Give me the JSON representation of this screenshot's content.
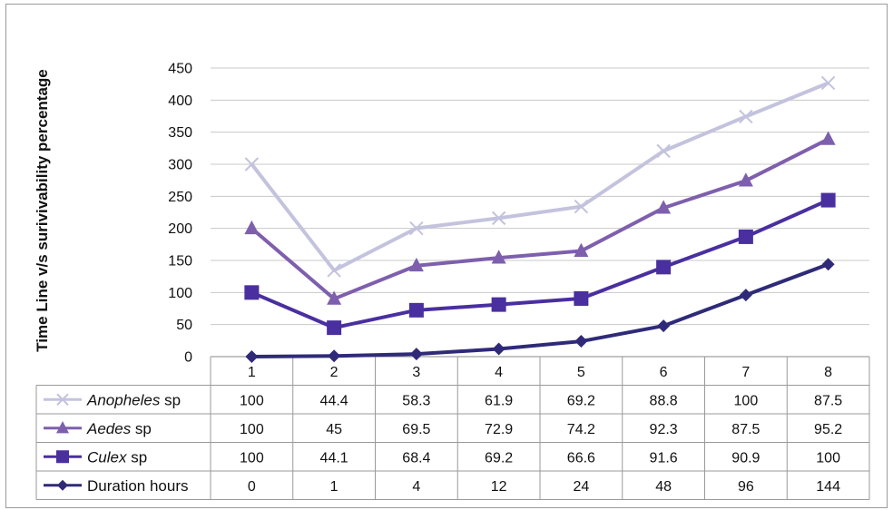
{
  "chart_data": {
    "type": "line",
    "stacked": true,
    "ylabel": "Time Line v/s surivivability percentage",
    "ylim": [
      0,
      450
    ],
    "yticks": [
      0,
      50,
      100,
      150,
      200,
      250,
      300,
      350,
      400,
      450
    ],
    "categories": [
      "1",
      "2",
      "3",
      "4",
      "5",
      "6",
      "7",
      "8"
    ],
    "grid": "horizontal",
    "legend": "data-table-below",
    "series": [
      {
        "name_italic": "Anopheles",
        "name_suffix": " sp",
        "values": [
          100,
          44.4,
          58.3,
          61.9,
          69.2,
          88.8,
          100,
          87.5
        ],
        "value_labels": [
          "100",
          "44.4",
          "58.3",
          "61.9",
          "69.2",
          "88.8",
          "100",
          "87.5"
        ],
        "color": "#c3c3de",
        "marker": "x"
      },
      {
        "name_italic": "Aedes",
        "name_suffix": " sp",
        "values": [
          100,
          45,
          69.5,
          72.9,
          74.2,
          92.3,
          87.5,
          95.2
        ],
        "value_labels": [
          "100",
          "45",
          "69.5",
          "72.9",
          "74.2",
          "92.3",
          "87.5",
          "95.2"
        ],
        "color": "#7e5fad",
        "marker": "triangle"
      },
      {
        "name_italic": "Culex",
        "name_suffix": " sp",
        "values": [
          100,
          44.1,
          68.4,
          69.2,
          66.6,
          91.6,
          90.9,
          100
        ],
        "value_labels": [
          "100",
          "44.1",
          "68.4",
          "69.2",
          "66.6",
          "91.6",
          "90.9",
          "100"
        ],
        "color": "#4a2fa0",
        "marker": "square"
      },
      {
        "name_italic": "",
        "name_suffix": "Duration hours",
        "values": [
          0,
          1,
          4,
          12,
          24,
          48,
          96,
          144
        ],
        "value_labels": [
          "0",
          "1",
          "4",
          "12",
          "24",
          "48",
          "96",
          "144"
        ],
        "color": "#2f2a78",
        "marker": "diamond"
      }
    ]
  }
}
